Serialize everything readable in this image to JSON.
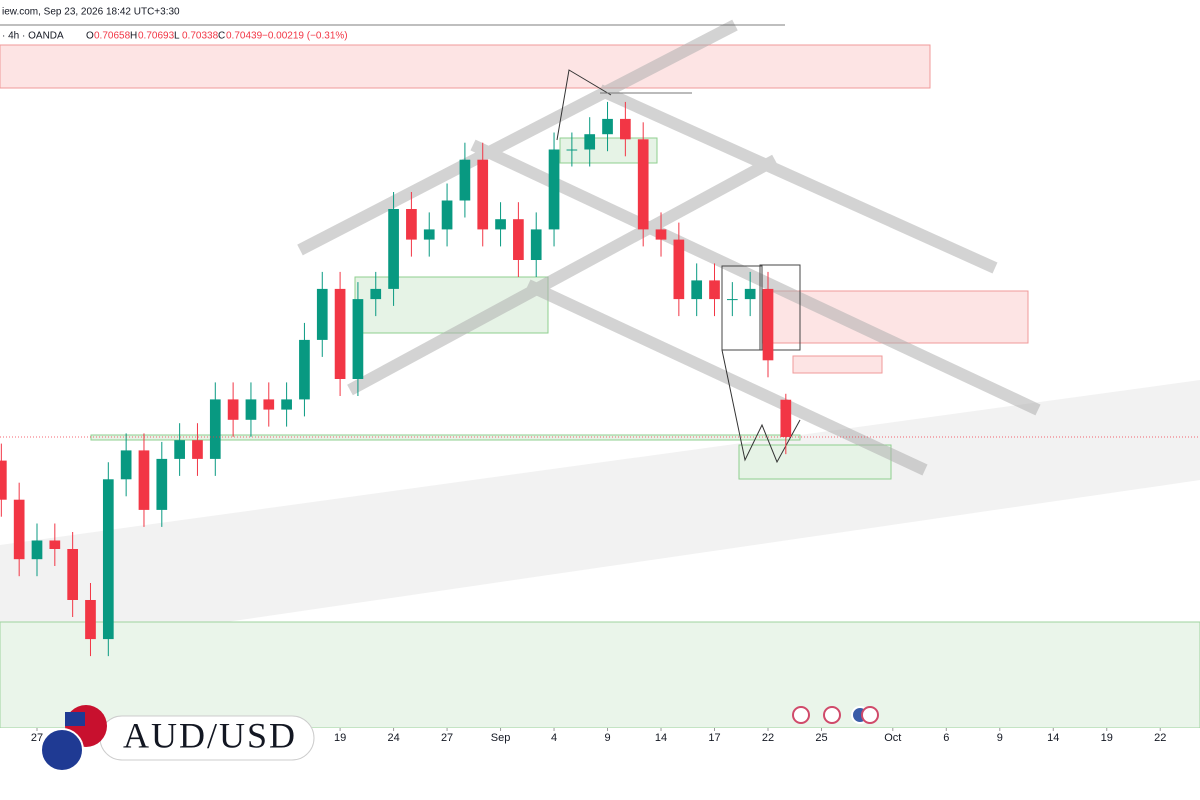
{
  "header": {
    "source": "iew.com, Sep 23, 2026 18:42 UTC+3:30",
    "instrument": "· 4h · OANDA",
    "change": "−0.00219 (−0.31%)"
  },
  "logo": {
    "pair": "AUD/USD"
  },
  "chart_data": {
    "type": "candlestick",
    "ohlc_labels": [
      "O",
      "H",
      "L",
      "C"
    ],
    "up_color": "#089981",
    "down_color": "#f23645",
    "x": [
      -2,
      -1,
      0,
      1,
      2,
      3,
      4,
      5,
      6,
      7,
      8,
      9,
      10,
      11,
      12,
      13,
      14,
      15,
      16,
      17,
      18,
      19,
      20,
      21,
      22,
      23,
      24,
      25,
      26,
      27,
      28,
      29,
      30,
      31,
      32,
      33,
      34,
      35,
      36,
      37,
      38,
      39,
      40,
      41,
      42
    ],
    "open": [
      0.703,
      0.7007,
      0.6972,
      0.6983,
      0.6978,
      0.6948,
      0.6925,
      0.7019,
      0.7036,
      0.7001,
      0.7031,
      0.7042,
      0.7031,
      0.7066,
      0.7054,
      0.7066,
      0.706,
      0.7066,
      0.7101,
      0.7131,
      0.7078,
      0.7125,
      0.7131,
      0.7178,
      0.716,
      0.7166,
      0.7183,
      0.7207,
      0.7166,
      0.7172,
      0.7148,
      0.7166,
      0.7213,
      0.7213,
      0.7222,
      0.7231,
      0.7219,
      0.7166,
      0.716,
      0.7125,
      0.7136,
      0.7125,
      0.7125,
      0.7131,
      0.70658
    ],
    "high": [
      0.704,
      0.7017,
      0.6993,
      0.6993,
      0.6988,
      0.6958,
      0.7029,
      0.7046,
      0.7046,
      0.7041,
      0.7052,
      0.7052,
      0.7076,
      0.7076,
      0.7076,
      0.7076,
      0.7076,
      0.7111,
      0.7141,
      0.7141,
      0.7135,
      0.7141,
      0.7188,
      0.7188,
      0.7176,
      0.7193,
      0.7217,
      0.7217,
      0.7182,
      0.7182,
      0.7176,
      0.7223,
      0.7223,
      0.7232,
      0.7241,
      0.7241,
      0.7229,
      0.7176,
      0.717,
      0.7146,
      0.7146,
      0.7135,
      0.7141,
      0.7141,
      0.70693
    ],
    "low": [
      0.6997,
      0.6962,
      0.6962,
      0.6968,
      0.6938,
      0.6915,
      0.6915,
      0.7009,
      0.6991,
      0.6991,
      0.7021,
      0.7021,
      0.7021,
      0.7044,
      0.7044,
      0.705,
      0.705,
      0.7056,
      0.7091,
      0.7068,
      0.7068,
      0.7115,
      0.7121,
      0.715,
      0.715,
      0.7156,
      0.7173,
      0.7156,
      0.7156,
      0.7138,
      0.7138,
      0.7156,
      0.7203,
      0.7203,
      0.7212,
      0.7209,
      0.7156,
      0.715,
      0.7115,
      0.7115,
      0.7115,
      0.7115,
      0.7115,
      0.7079,
      0.70338
    ],
    "close": [
      0.7007,
      0.6972,
      0.6983,
      0.6978,
      0.6948,
      0.6925,
      0.7019,
      0.7036,
      0.7001,
      0.7031,
      0.7042,
      0.7031,
      0.7066,
      0.7054,
      0.7066,
      0.706,
      0.7066,
      0.7101,
      0.7131,
      0.7078,
      0.7125,
      0.7131,
      0.7178,
      0.716,
      0.7166,
      0.7183,
      0.7207,
      0.7166,
      0.7172,
      0.7148,
      0.7166,
      0.7213,
      0.7213,
      0.7222,
      0.7231,
      0.7219,
      0.7166,
      0.716,
      0.7125,
      0.7136,
      0.7125,
      0.7125,
      0.7131,
      0.7089,
      0.70439
    ],
    "xlim": [
      -2.075,
      65.23
    ],
    "ylim": [
      0.68727,
      0.72833
    ],
    "xticks": [
      {
        "value": 0,
        "label": "27"
      },
      {
        "value": 17,
        "label": "19"
      },
      {
        "value": 20,
        "label": "24"
      },
      {
        "value": 23,
        "label": "27"
      },
      {
        "value": 26,
        "label": "Sep"
      },
      {
        "value": 29,
        "label": "4"
      },
      {
        "value": 32,
        "label": "9"
      },
      {
        "value": 35,
        "label": "14"
      },
      {
        "value": 38,
        "label": "17"
      },
      {
        "value": 41,
        "label": "22"
      },
      {
        "value": 44,
        "label": "25"
      },
      {
        "value": 48,
        "label": "Oct"
      },
      {
        "value": 51,
        "label": "6"
      },
      {
        "value": 54,
        "label": "9"
      },
      {
        "value": 57,
        "label": "14"
      },
      {
        "value": 60,
        "label": "19"
      },
      {
        "value": 63,
        "label": "22"
      }
    ]
  }
}
